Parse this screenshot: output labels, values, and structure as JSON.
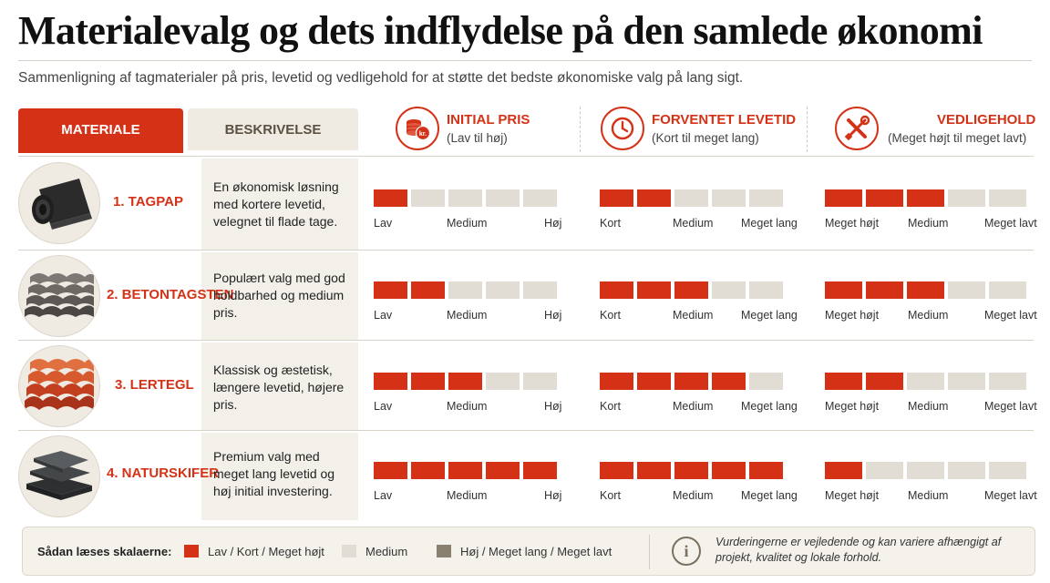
{
  "title": "Materialevalg og dets indflydelse på den samlede økonomi",
  "subtitle": "Sammenligning af tagmaterialer på pris, levetid og vedligehold for at støtte det bedste økonomiske valg på lang sigt.",
  "headers": {
    "material": "MATERIALE",
    "description": "BESKRIVELSE",
    "price": {
      "title": "INITIAL PRIS",
      "sub": "(Lav til høj)",
      "icon": "coins-icon"
    },
    "lifetime": {
      "title": "FORVENTET LEVETID",
      "sub": "(Kort til meget lang)",
      "icon": "clock-icon"
    },
    "maintenance": {
      "title": "VEDLIGEHOLD",
      "sub": "(Meget højt til meget lavt)",
      "icon": "tools-icon"
    }
  },
  "scale_labels": {
    "price": [
      "Lav",
      "Medium",
      "Høj"
    ],
    "lifetime": [
      "Kort",
      "Medium",
      "Meget lang"
    ],
    "maintenance": [
      "Meget højt",
      "Medium",
      "Meget lavt"
    ]
  },
  "materials": [
    {
      "name": "1. TAGPAP",
      "icon": "roofing-felt-roll-icon",
      "description": "En økonomisk løsning med kortere levetid, velegnet til flade tage.",
      "price": 1,
      "lifetime": 2,
      "maintenance": 3
    },
    {
      "name": "2. BETONTAGSTEN",
      "icon": "concrete-roof-tiles-icon",
      "description": "Populært valg med god holdbarhed og medium pris.",
      "price": 2,
      "lifetime": 3,
      "maintenance": 3
    },
    {
      "name": "3. LERTEGL",
      "icon": "clay-roof-tiles-icon",
      "description": "Klassisk og æstetisk, længere levetid, højere pris.",
      "price": 3,
      "lifetime": 4,
      "maintenance": 2
    },
    {
      "name": "4. NATURSKIFER",
      "icon": "natural-slate-icon",
      "description": "Premium valg med meget lang levetid og høj initial investering.",
      "price": 5,
      "lifetime": 5,
      "maintenance": 1
    }
  ],
  "scale_max": 5,
  "legend": {
    "title": "Sådan læses skalaerne:",
    "items": [
      {
        "label": "Lav / Kort / Meget højt",
        "color": "#d43117"
      },
      {
        "label": "Medium",
        "color": "#e2ddd4"
      },
      {
        "label": "Høj / Meget lang / Meget lavt",
        "color": "#8a8070"
      }
    ],
    "info_icon": "info-icon",
    "note": "Vurderingerne er vejledende og kan variere afhængigt af projekt, kvalitet og lokale forhold."
  }
}
